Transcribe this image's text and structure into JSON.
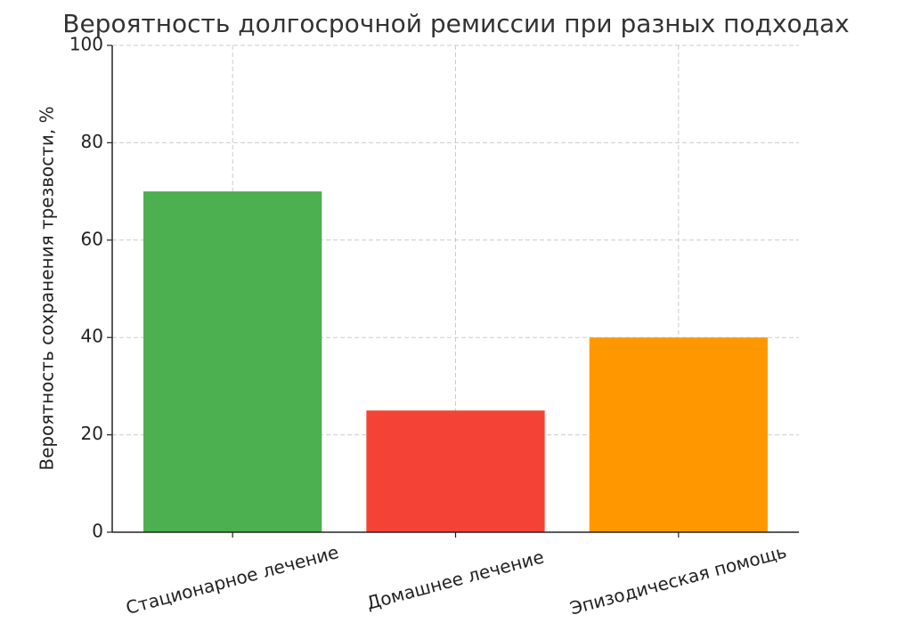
{
  "chart_data": {
    "type": "bar",
    "title": "Вероятность долгосрочной ремиссии при разных подходах",
    "y_label": "Вероятность сохранения трезвости, %",
    "categories": [
      "Стационарное лечение",
      "Домашнее лечение",
      "Эпизодическая помощь"
    ],
    "values": [
      70,
      25,
      40
    ],
    "colors": [
      "#4caf50",
      "#f44336",
      "#ff9800"
    ],
    "ylim": [
      0,
      100
    ],
    "yticks": [
      0,
      20,
      40,
      60,
      80,
      100
    ],
    "grid": true
  }
}
